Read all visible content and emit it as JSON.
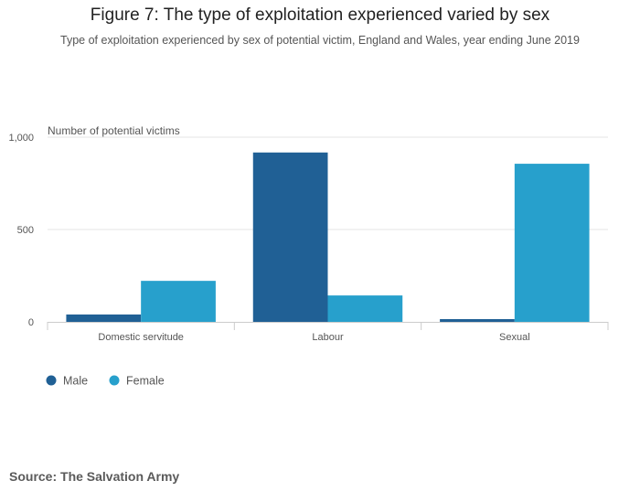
{
  "title": "Figure 7: The type of exploitation experienced varied by sex",
  "subtitle": "Type of exploitation experienced by sex of potential victim, England and Wales, year ending June 2019",
  "source": "Source: The Salvation Army",
  "colors": {
    "male": "#206095",
    "female": "#27a0cc",
    "grid": "#e5e5e5",
    "axis": "#cccccc"
  },
  "chart_data": {
    "type": "bar",
    "title": "Figure 7: The type of exploitation experienced varied by sex",
    "ylabel": "Number of potential victims",
    "xlabel": "",
    "categories": [
      "Domestic servitude",
      "Labour",
      "Sexual"
    ],
    "series": [
      {
        "name": "Male",
        "color": "#206095",
        "values": [
          40,
          917,
          15
        ]
      },
      {
        "name": "Female",
        "color": "#27a0cc",
        "values": [
          222,
          143,
          856
        ]
      }
    ],
    "ylim": [
      0,
      1000
    ],
    "yticks": [
      0,
      500,
      1000
    ],
    "ytick_labels": [
      "0",
      "500",
      "1,000"
    ],
    "legend": "bottom-left",
    "grid": true
  }
}
